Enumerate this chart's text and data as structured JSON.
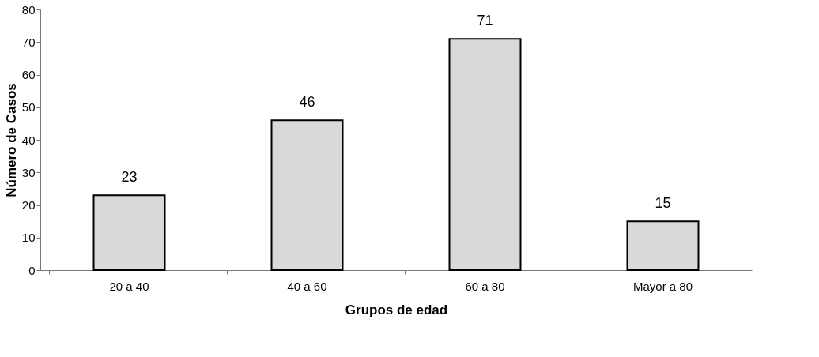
{
  "chart_data": {
    "type": "bar",
    "xlabel": "Grupos de edad",
    "ylabel": "Número de Casos",
    "categories": [
      "20 a 40",
      "40 a 60",
      "60 a 80",
      "Mayor a 80"
    ],
    "values": [
      23,
      46,
      71,
      15
    ],
    "color": "#d9d9d9",
    "ylim": [
      0,
      80
    ],
    "yticks": [
      0,
      10,
      20,
      30,
      40,
      50,
      60,
      70,
      80
    ],
    "grid": false,
    "data_labels": true
  }
}
